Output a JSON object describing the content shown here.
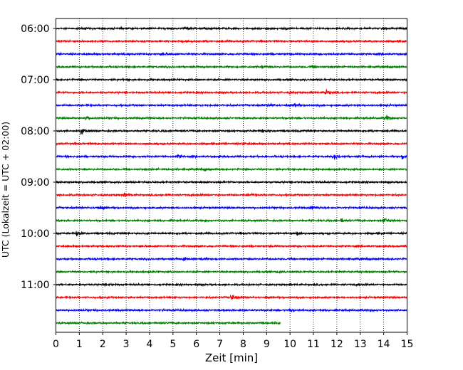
{
  "chart_data": {
    "type": "line",
    "title": "",
    "xlabel": "Zeit  [min]",
    "ylabel": "UTC (Lokalzeit = UTC + 02:00)",
    "xlim": [
      0,
      15
    ],
    "x_ticks": [
      "0",
      "1",
      "2",
      "3",
      "4",
      "5",
      "6",
      "7",
      "8",
      "9",
      "10",
      "11",
      "12",
      "13",
      "14",
      "15"
    ],
    "y_ticks": [
      "06:00",
      "07:00",
      "08:00",
      "09:00",
      "10:00",
      "11:00"
    ],
    "grid": "vertical dotted",
    "row_interval_min": 15,
    "trace_colors": [
      "#000000",
      "#ff0000",
      "#0000ff",
      "#008000"
    ],
    "series": [
      {
        "start": "06:00",
        "end_min": 15,
        "events": [
          [
            5.5,
            0.3
          ],
          [
            9.0,
            0.3
          ],
          [
            9.8,
            0.3
          ]
        ]
      },
      {
        "start": "06:15",
        "end_min": 15,
        "events": []
      },
      {
        "start": "06:30",
        "end_min": 15,
        "events": [
          [
            4.5,
            0.3
          ]
        ]
      },
      {
        "start": "06:45",
        "end_min": 15,
        "events": [
          [
            8.8,
            0.4
          ],
          [
            11.0,
            0.4
          ]
        ]
      },
      {
        "start": "07:00",
        "end_min": 15,
        "events": []
      },
      {
        "start": "07:15",
        "end_min": 15,
        "events": [
          [
            11.5,
            0.9
          ],
          [
            10.0,
            0.3
          ]
        ]
      },
      {
        "start": "07:30",
        "end_min": 15,
        "events": [
          [
            10.2,
            0.4
          ],
          [
            9.2,
            0.3
          ]
        ]
      },
      {
        "start": "07:45",
        "end_min": 15,
        "events": [
          [
            1.3,
            0.6
          ],
          [
            14.1,
            1.0
          ]
        ]
      },
      {
        "start": "08:00",
        "end_min": 15,
        "events": [
          [
            1.1,
            1.0
          ],
          [
            8.8,
            0.4
          ]
        ]
      },
      {
        "start": "08:15",
        "end_min": 15,
        "events": [
          [
            8.0,
            0.3
          ]
        ]
      },
      {
        "start": "08:30",
        "end_min": 15,
        "events": [
          [
            5.2,
            0.5
          ],
          [
            11.9,
            0.8
          ],
          [
            14.8,
            0.8
          ]
        ]
      },
      {
        "start": "08:45",
        "end_min": 15,
        "events": [
          [
            6.4,
            0.3
          ]
        ]
      },
      {
        "start": "09:00",
        "end_min": 15,
        "events": []
      },
      {
        "start": "09:15",
        "end_min": 15,
        "events": [
          [
            2.9,
            0.7
          ],
          [
            8.2,
            0.3
          ]
        ]
      },
      {
        "start": "09:30",
        "end_min": 15,
        "events": [
          [
            1.8,
            0.7
          ],
          [
            10.9,
            0.6
          ]
        ]
      },
      {
        "start": "09:45",
        "end_min": 15,
        "events": [
          [
            12.2,
            0.5
          ],
          [
            14.0,
            1.0
          ]
        ]
      },
      {
        "start": "10:00",
        "end_min": 15,
        "events": [
          [
            0.9,
            0.8
          ],
          [
            10.3,
            1.0
          ]
        ]
      },
      {
        "start": "10:15",
        "end_min": 15,
        "events": []
      },
      {
        "start": "10:30",
        "end_min": 15,
        "events": [
          [
            5.5,
            0.7
          ],
          [
            6.2,
            0.3
          ]
        ]
      },
      {
        "start": "10:45",
        "end_min": 15,
        "events": [
          [
            9.5,
            0.3
          ]
        ]
      },
      {
        "start": "11:00",
        "end_min": 15,
        "events": [
          [
            2.2,
            0.3
          ]
        ]
      },
      {
        "start": "11:15",
        "end_min": 15,
        "events": [
          [
            7.5,
            0.8
          ]
        ]
      },
      {
        "start": "11:30",
        "end_min": 15,
        "events": [
          [
            10.0,
            0.4
          ]
        ]
      },
      {
        "start": "11:45",
        "end_min": 9.6,
        "events": []
      }
    ]
  }
}
